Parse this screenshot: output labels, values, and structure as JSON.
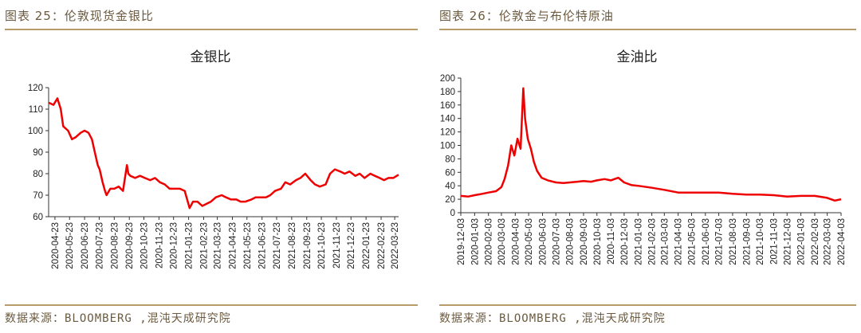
{
  "left": {
    "figure_title": "图表 25：伦敦现货金银比",
    "source": "数据来源：BLOOMBERG ,混沌天成研究院"
  },
  "right": {
    "figure_title": "图表 26：伦敦金与布伦特原油",
    "source": "数据来源：BLOOMBERG ,混沌天成研究院"
  },
  "colors": {
    "line": "#ee0000",
    "rule": "#b79b68",
    "caption": "#6b5a3f"
  },
  "chart_data": [
    {
      "type": "line",
      "title": "金银比",
      "xlabel": "",
      "ylabel": "",
      "ylim": [
        60,
        120
      ],
      "yticks": [
        60,
        70,
        80,
        90,
        100,
        110,
        120
      ],
      "grid": false,
      "xticks": [
        "2020-04-23",
        "2020-05-23",
        "2020-06-23",
        "2020-07-23",
        "2020-08-23",
        "2020-09-23",
        "2020-10-23",
        "2020-11-23",
        "2020-12-23",
        "2021-01-23",
        "2021-02-23",
        "2021-03-23",
        "2021-04-23",
        "2021-05-23",
        "2021-06-23",
        "2021-07-23",
        "2021-08-23",
        "2021-09-23",
        "2021-10-23",
        "2021-11-23",
        "2021-12-23",
        "2022-01-23",
        "2022-02-23",
        "2022-03-23"
      ],
      "series": [
        {
          "x": [
            "2020-04-10",
            "2020-04-20",
            "2020-04-28",
            "2020-05-05",
            "2020-05-10",
            "2020-05-20",
            "2020-05-28",
            "2020-06-05",
            "2020-06-15",
            "2020-06-23",
            "2020-07-01",
            "2020-07-08",
            "2020-07-14",
            "2020-07-20",
            "2020-07-24",
            "2020-07-30",
            "2020-08-04",
            "2020-08-07",
            "2020-08-15",
            "2020-08-23",
            "2020-09-01",
            "2020-09-10",
            "2020-09-18",
            "2020-09-21",
            "2020-09-25",
            "2020-10-05",
            "2020-10-15",
            "2020-10-25",
            "2020-11-05",
            "2020-11-15",
            "2020-11-25",
            "2020-12-05",
            "2020-12-15",
            "2020-12-25",
            "2021-01-05",
            "2021-01-15",
            "2021-01-25",
            "2021-02-01",
            "2021-02-10",
            "2021-02-20",
            "2021-03-01",
            "2021-03-10",
            "2021-03-20",
            "2021-04-01",
            "2021-04-10",
            "2021-04-20",
            "2021-05-01",
            "2021-05-10",
            "2021-05-20",
            "2021-06-01",
            "2021-06-10",
            "2021-06-20",
            "2021-07-01",
            "2021-07-10",
            "2021-07-20",
            "2021-08-01",
            "2021-08-10",
            "2021-08-20",
            "2021-09-01",
            "2021-09-10",
            "2021-09-20",
            "2021-10-01",
            "2021-10-10",
            "2021-10-20",
            "2021-11-01",
            "2021-11-10",
            "2021-11-20",
            "2021-12-01",
            "2021-12-10",
            "2021-12-20",
            "2022-01-01",
            "2022-01-10",
            "2022-01-20",
            "2022-02-01",
            "2022-02-10",
            "2022-02-20",
            "2022-03-01",
            "2022-03-10",
            "2022-03-20",
            "2022-03-31"
          ],
          "y": [
            113,
            112,
            115,
            110,
            102,
            100,
            96,
            97,
            99,
            100,
            99,
            96,
            90,
            84,
            82,
            76,
            72,
            70,
            73,
            73,
            74,
            72,
            84,
            80,
            79,
            78,
            79,
            78,
            77,
            78,
            76,
            75,
            73,
            73,
            73,
            72,
            64,
            67,
            67,
            65,
            66,
            67,
            69,
            70,
            69,
            68,
            68,
            67,
            67,
            68,
            69,
            69,
            69,
            70,
            72,
            73,
            76,
            75,
            77,
            78,
            80,
            77,
            75,
            74,
            75,
            80,
            82,
            81,
            80,
            81,
            79,
            80,
            78,
            80,
            79,
            78,
            77,
            78,
            78,
            79.5
          ]
        }
      ]
    },
    {
      "type": "line",
      "title": "金油比",
      "xlabel": "",
      "ylabel": "",
      "ylim": [
        0,
        200
      ],
      "yticks": [
        0,
        20,
        40,
        60,
        80,
        100,
        120,
        140,
        160,
        180,
        200
      ],
      "grid": false,
      "xticks": [
        "2019-12-03",
        "2020-01-03",
        "2020-02-03",
        "2020-03-03",
        "2020-04-03",
        "2020-05-03",
        "2020-06-03",
        "2020-07-03",
        "2020-08-03",
        "2020-09-03",
        "2020-10-03",
        "2020-11-03",
        "2020-12-03",
        "2021-01-03",
        "2021-02-03",
        "2021-03-03",
        "2021-04-03",
        "2021-05-03",
        "2021-06-03",
        "2021-07-03",
        "2021-08-03",
        "2021-09-03",
        "2021-10-03",
        "2021-11-03",
        "2021-12-03",
        "2022-01-03",
        "2022-02-03",
        "2022-03-03",
        "2022-04-03"
      ],
      "series": [
        {
          "x": [
            "2019-12-03",
            "2019-12-20",
            "2020-01-03",
            "2020-01-20",
            "2020-02-03",
            "2020-02-20",
            "2020-03-03",
            "2020-03-10",
            "2020-03-18",
            "2020-03-25",
            "2020-04-01",
            "2020-04-08",
            "2020-04-15",
            "2020-04-21",
            "2020-04-25",
            "2020-05-01",
            "2020-05-08",
            "2020-05-15",
            "2020-05-22",
            "2020-06-01",
            "2020-06-15",
            "2020-07-03",
            "2020-07-20",
            "2020-08-03",
            "2020-08-20",
            "2020-09-03",
            "2020-09-20",
            "2020-10-03",
            "2020-10-20",
            "2020-11-03",
            "2020-11-20",
            "2020-12-03",
            "2020-12-20",
            "2021-01-03",
            "2021-02-03",
            "2021-03-03",
            "2021-04-03",
            "2021-05-03",
            "2021-06-03",
            "2021-07-03",
            "2021-08-03",
            "2021-09-03",
            "2021-10-03",
            "2021-11-03",
            "2021-12-03",
            "2022-01-03",
            "2022-02-03",
            "2022-03-03",
            "2022-03-20",
            "2022-04-03"
          ],
          "y": [
            25,
            24,
            26,
            28,
            30,
            32,
            38,
            50,
            70,
            100,
            85,
            110,
            95,
            185,
            140,
            110,
            95,
            75,
            62,
            52,
            48,
            45,
            44,
            45,
            46,
            47,
            46,
            48,
            50,
            48,
            52,
            45,
            41,
            40,
            37,
            34,
            30,
            30,
            30,
            30,
            28,
            27,
            27,
            26,
            24,
            25,
            25,
            22,
            18,
            20
          ]
        }
      ]
    }
  ]
}
